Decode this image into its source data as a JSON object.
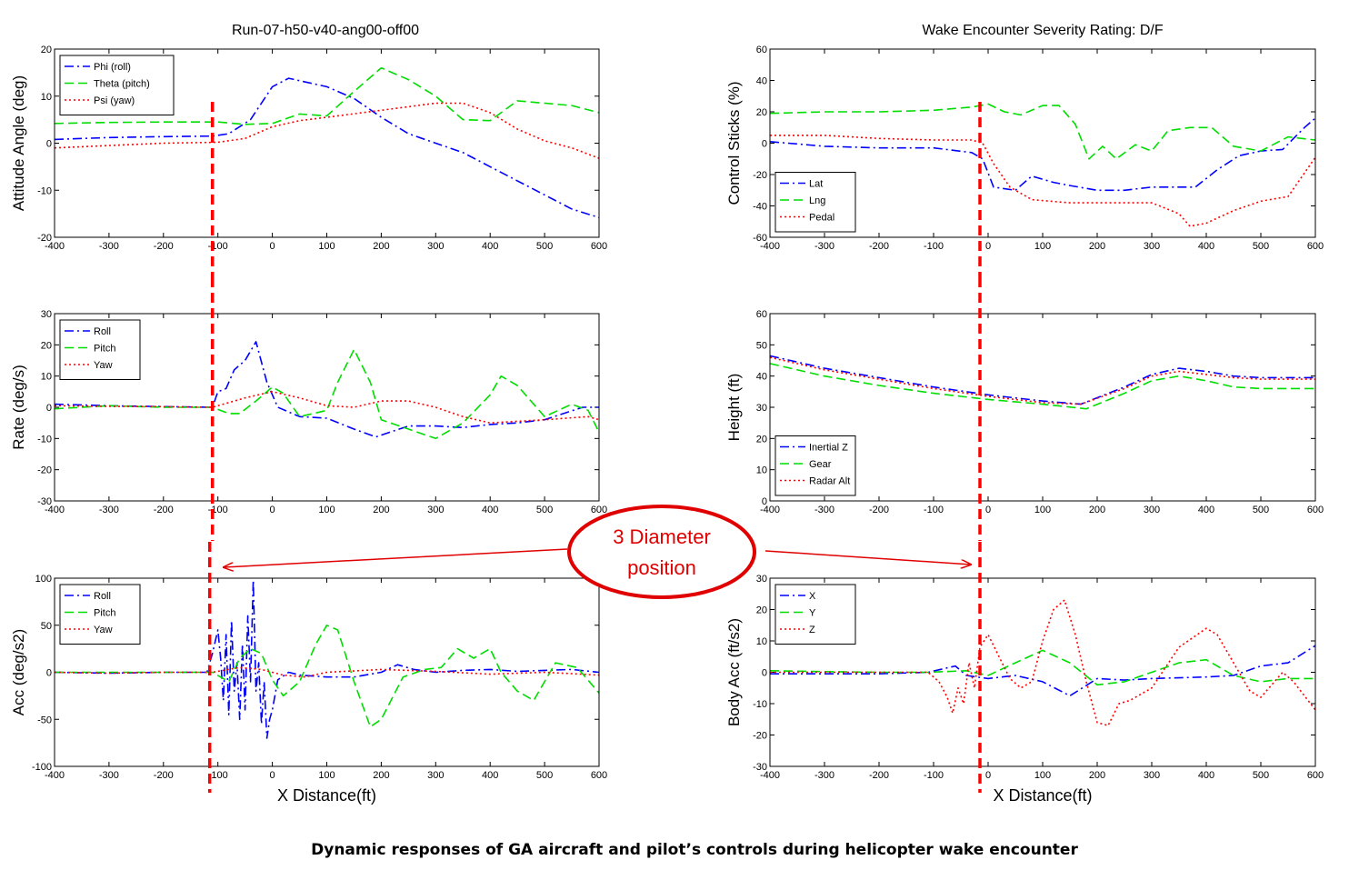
{
  "titles": {
    "left": "Run-07-h50-v40-ang00-off00",
    "right": "Wake Encounter Severity Rating:  D/F"
  },
  "caption": "Dynamic responses of GA aircraft and pilot’s controls during helicopter wake encounter",
  "annotation": {
    "line1": "3 Diameter",
    "line2": "position"
  },
  "colors": {
    "blue": "#0000ff",
    "green": "#00dd00",
    "red": "#ff0000",
    "annotation": "#e00000"
  },
  "chart_data": [
    {
      "type": "line",
      "ylabel": "Attitude Angle (deg)",
      "xlabel": "",
      "xlim": [
        -400,
        600
      ],
      "ylim": [
        -20,
        20
      ],
      "xticks": [
        -400,
        -300,
        -200,
        -100,
        0,
        100,
        200,
        300,
        400,
        500,
        600
      ],
      "yticks": [
        -20,
        -10,
        0,
        10,
        20
      ],
      "marker_x": -110,
      "series": [
        {
          "name": "Phi (roll)",
          "style": "dashdot",
          "color": "#0000ff",
          "x": [
            -400,
            -300,
            -200,
            -110,
            -80,
            -40,
            0,
            30,
            100,
            150,
            200,
            250,
            300,
            350,
            400,
            450,
            500,
            550,
            600
          ],
          "y": [
            0.8,
            1.2,
            1.4,
            1.5,
            2,
            5,
            12,
            13.8,
            12,
            9.5,
            5.5,
            2,
            0,
            -2,
            -5,
            -8,
            -11,
            -14,
            -15.8
          ]
        },
        {
          "name": "Theta (pitch)",
          "style": "dash",
          "color": "#00dd00",
          "x": [
            -400,
            -300,
            -200,
            -100,
            -50,
            0,
            50,
            100,
            150,
            200,
            250,
            300,
            350,
            400,
            450,
            500,
            550,
            600
          ],
          "y": [
            4.2,
            4.4,
            4.5,
            4.5,
            4,
            4.2,
            6.2,
            5.8,
            11,
            16,
            13.5,
            10,
            5,
            4.8,
            9,
            8.5,
            8,
            6.5
          ]
        },
        {
          "name": "Psi (yaw)",
          "style": "dot",
          "color": "#ff0000",
          "x": [
            -400,
            -300,
            -200,
            -100,
            -50,
            0,
            50,
            100,
            200,
            300,
            350,
            400,
            450,
            500,
            550,
            600
          ],
          "y": [
            -1,
            -0.5,
            0,
            0.2,
            1,
            3.5,
            4.8,
            5.5,
            7,
            8.5,
            8.5,
            6.5,
            3,
            0.5,
            -1,
            -3.2
          ]
        }
      ]
    },
    {
      "type": "line",
      "ylabel": "Control Sticks (%)",
      "xlabel": "",
      "xlim": [
        -400,
        600
      ],
      "ylim": [
        -60,
        60
      ],
      "xticks": [
        -400,
        -300,
        -200,
        -100,
        0,
        100,
        200,
        300,
        400,
        500,
        600
      ],
      "yticks": [
        -60,
        -40,
        -20,
        0,
        20,
        40,
        60
      ],
      "marker_x": -15,
      "series": [
        {
          "name": "Lat",
          "style": "dashdot",
          "color": "#0000ff",
          "x": [
            -400,
            -300,
            -200,
            -100,
            -30,
            -10,
            10,
            50,
            80,
            120,
            150,
            200,
            250,
            300,
            350,
            380,
            420,
            460,
            500,
            540,
            580,
            600
          ],
          "y": [
            1,
            -2,
            -3,
            -3,
            -6,
            -10,
            -28,
            -30,
            -21,
            -25,
            -27,
            -30,
            -30,
            -28,
            -28,
            -28,
            -17,
            -8,
            -5,
            -4,
            10,
            16
          ]
        },
        {
          "name": "Lng",
          "style": "dash",
          "color": "#00dd00",
          "x": [
            -400,
            -300,
            -200,
            -100,
            -30,
            0,
            30,
            60,
            100,
            130,
            160,
            185,
            210,
            235,
            270,
            300,
            330,
            370,
            410,
            450,
            500,
            550,
            600
          ],
          "y": [
            19,
            20,
            20,
            21,
            23,
            25,
            20,
            18,
            24,
            24,
            12,
            -10,
            -2,
            -10,
            -1,
            -5,
            8,
            10,
            10,
            -2,
            -5,
            4,
            2
          ]
        },
        {
          "name": "Pedal",
          "style": "dot",
          "color": "#ff0000",
          "x": [
            -400,
            -300,
            -200,
            -100,
            -30,
            -10,
            10,
            40,
            80,
            150,
            200,
            300,
            350,
            370,
            400,
            450,
            500,
            550,
            600
          ],
          "y": [
            5,
            5,
            3,
            2,
            2,
            0,
            -13,
            -28,
            -36,
            -38,
            -38,
            -38,
            -45,
            -53,
            -51,
            -43,
            -37,
            -34,
            -9
          ]
        }
      ]
    },
    {
      "type": "line",
      "ylabel": "Rate (deg/s)",
      "xlabel": "",
      "xlim": [
        -400,
        600
      ],
      "ylim": [
        -30,
        30
      ],
      "xticks": [
        -400,
        -300,
        -200,
        -100,
        0,
        100,
        200,
        300,
        400,
        500,
        600
      ],
      "yticks": [
        -30,
        -20,
        -10,
        0,
        10,
        20,
        30
      ],
      "marker_x": -110,
      "series": [
        {
          "name": "Roll",
          "style": "dashdot",
          "color": "#0000ff",
          "x": [
            -400,
            -300,
            -200,
            -110,
            -100,
            -85,
            -70,
            -50,
            -30,
            -10,
            10,
            50,
            100,
            150,
            190,
            250,
            300,
            350,
            400,
            450,
            500,
            570,
            600
          ],
          "y": [
            1,
            0.5,
            0.2,
            0,
            5,
            6,
            12,
            15,
            21,
            8,
            0,
            -3,
            -3.5,
            -7,
            -9.5,
            -6,
            -6,
            -6.5,
            -5.5,
            -5,
            -4,
            0,
            0
          ]
        },
        {
          "name": "Pitch",
          "style": "dash",
          "color": "#00dd00",
          "x": [
            -400,
            -300,
            -200,
            -110,
            -80,
            -60,
            -30,
            0,
            20,
            50,
            100,
            120,
            150,
            180,
            200,
            250,
            300,
            350,
            400,
            420,
            450,
            500,
            550,
            580,
            600
          ],
          "y": [
            -0.5,
            0.5,
            0,
            0,
            -2,
            -2,
            2,
            6.5,
            4.5,
            -3,
            -1,
            8,
            18.5,
            8,
            -4,
            -7,
            -10,
            -5,
            4,
            10,
            7,
            -3,
            1,
            -1,
            -8
          ]
        },
        {
          "name": "Yaw",
          "style": "dot",
          "color": "#ff0000",
          "x": [
            -400,
            -300,
            -200,
            -110,
            -50,
            0,
            50,
            100,
            150,
            200,
            250,
            300,
            350,
            400,
            500,
            580,
            600
          ],
          "y": [
            0.5,
            0.3,
            0.2,
            0,
            3,
            5,
            3,
            0.5,
            0,
            2,
            2,
            0,
            -3,
            -5,
            -4,
            -3,
            -4
          ]
        }
      ]
    },
    {
      "type": "line",
      "ylabel": "Height (ft)",
      "xlabel": "",
      "xlim": [
        -400,
        600
      ],
      "ylim": [
        0,
        60
      ],
      "xticks": [
        -400,
        -300,
        -200,
        -100,
        0,
        100,
        200,
        300,
        400,
        500,
        600
      ],
      "yticks": [
        0,
        10,
        20,
        30,
        40,
        50,
        60
      ],
      "marker_x": -15,
      "series": [
        {
          "name": "Inertial Z",
          "style": "dashdot",
          "color": "#0000ff",
          "x": [
            -400,
            -300,
            -200,
            -100,
            0,
            100,
            170,
            250,
            300,
            350,
            400,
            450,
            500,
            600
          ],
          "y": [
            46.5,
            42.5,
            39.5,
            36.5,
            34,
            32,
            31,
            36.5,
            40.5,
            42.5,
            41.5,
            40,
            39.5,
            39.5
          ]
        },
        {
          "name": "Gear",
          "style": "dash",
          "color": "#00dd00",
          "x": [
            -400,
            -300,
            -200,
            -100,
            0,
            100,
            180,
            250,
            300,
            350,
            400,
            450,
            500,
            600
          ],
          "y": [
            44,
            40,
            37,
            34.5,
            32.5,
            31,
            29.5,
            34.5,
            38.5,
            40,
            38.5,
            36.5,
            36,
            36
          ]
        },
        {
          "name": "Radar Alt",
          "style": "dot",
          "color": "#ff0000",
          "x": [
            -400,
            -300,
            -200,
            -100,
            0,
            100,
            170,
            250,
            300,
            350,
            400,
            450,
            500,
            600
          ],
          "y": [
            46,
            42,
            39,
            36,
            33.5,
            31.5,
            31,
            36,
            40,
            41.5,
            40.5,
            39.5,
            39,
            39
          ]
        }
      ]
    },
    {
      "type": "line",
      "ylabel": "Acc (deg/s2)",
      "xlabel": "X Distance(ft)",
      "xlim": [
        -400,
        600
      ],
      "ylim": [
        -100,
        100
      ],
      "xticks": [
        -400,
        -300,
        -200,
        -100,
        0,
        100,
        200,
        300,
        400,
        500,
        600
      ],
      "yticks": [
        -100,
        -50,
        0,
        50,
        100
      ],
      "marker_x": -115,
      "series": [
        {
          "name": "Roll",
          "style": "dashdot",
          "color": "#0000ff",
          "x": [
            -400,
            -300,
            -200,
            -120,
            -110,
            -100,
            -95,
            -90,
            -85,
            -80,
            -75,
            -70,
            -65,
            -60,
            -55,
            -50,
            -45,
            -40,
            -35,
            -30,
            -25,
            -20,
            -15,
            -10,
            -5,
            0,
            10,
            30,
            50,
            100,
            150,
            200,
            230,
            260,
            300,
            350,
            400,
            450,
            500,
            550,
            600
          ],
          "y": [
            0,
            -1,
            0,
            0,
            20,
            45,
            15,
            -30,
            40,
            -45,
            55,
            -20,
            10,
            -50,
            30,
            -40,
            60,
            -10,
            98,
            -20,
            10,
            -55,
            -10,
            -70,
            -50,
            -40,
            -8,
            0,
            -3,
            -5,
            -5,
            0,
            8,
            3,
            0,
            2,
            3,
            1,
            2,
            3,
            0
          ]
        },
        {
          "name": "Pitch",
          "style": "dash",
          "color": "#00dd00",
          "x": [
            -400,
            -300,
            -200,
            -110,
            -80,
            -60,
            -40,
            -20,
            0,
            20,
            50,
            80,
            100,
            120,
            150,
            180,
            200,
            240,
            280,
            310,
            340,
            370,
            400,
            420,
            450,
            480,
            520,
            560,
            600
          ],
          "y": [
            0,
            0,
            0,
            0,
            -10,
            15,
            25,
            20,
            -8,
            -25,
            -10,
            30,
            50,
            45,
            -10,
            -58,
            -50,
            -5,
            3,
            5,
            25,
            15,
            25,
            0,
            -20,
            -30,
            10,
            5,
            -22
          ]
        },
        {
          "name": "Yaw",
          "style": "dot",
          "color": "#ff0000",
          "x": [
            -400,
            -300,
            -200,
            -110,
            -60,
            -20,
            20,
            60,
            100,
            200,
            300,
            400,
            500,
            600
          ],
          "y": [
            0,
            -1,
            0,
            0,
            5,
            3,
            -3,
            -5,
            0,
            3,
            1,
            -2,
            0,
            -3
          ]
        }
      ]
    },
    {
      "type": "line",
      "ylabel": "Body Acc (ft/s2)",
      "xlabel": "X Distance(ft)",
      "xlim": [
        -400,
        600
      ],
      "ylim": [
        -30,
        30
      ],
      "xticks": [
        -400,
        -300,
        -200,
        -100,
        0,
        100,
        200,
        300,
        400,
        500,
        600
      ],
      "yticks": [
        -30,
        -20,
        -10,
        0,
        10,
        20,
        30
      ],
      "marker_x": -15,
      "series": [
        {
          "name": "X",
          "style": "dashdot",
          "color": "#0000ff",
          "x": [
            -400,
            -300,
            -200,
            -110,
            -60,
            -40,
            0,
            50,
            100,
            150,
            200,
            250,
            300,
            400,
            450,
            500,
            550,
            600
          ],
          "y": [
            -0.5,
            -0.5,
            -0.5,
            0,
            2,
            -1,
            -2,
            -1,
            -3,
            -7.5,
            -2,
            -2.5,
            -2,
            -1.5,
            -1,
            2,
            3,
            8.5
          ]
        },
        {
          "name": "Y",
          "style": "dash",
          "color": "#00dd00",
          "x": [
            -400,
            -300,
            -200,
            -110,
            -40,
            0,
            50,
            100,
            150,
            200,
            250,
            300,
            350,
            400,
            450,
            500,
            550,
            600
          ],
          "y": [
            0.5,
            0.2,
            0,
            0,
            0.5,
            -1,
            3,
            7,
            3,
            -4,
            -3,
            0,
            3,
            4,
            -1,
            -3,
            -2,
            -2
          ]
        },
        {
          "name": "Z",
          "style": "dot",
          "color": "#ff0000",
          "x": [
            -400,
            -300,
            -200,
            -110,
            -90,
            -75,
            -65,
            -55,
            -45,
            -35,
            -25,
            -15,
            0,
            20,
            40,
            60,
            80,
            100,
            120,
            140,
            160,
            180,
            200,
            220,
            240,
            260,
            300,
            350,
            400,
            420,
            450,
            480,
            500,
            540,
            560,
            600
          ],
          "y": [
            0,
            0,
            0,
            0,
            -3,
            -8,
            -13,
            -5,
            -10,
            3,
            -5,
            8,
            12,
            5,
            -2,
            -5,
            -3,
            10,
            20,
            23,
            12,
            -3,
            -16,
            -17,
            -10,
            -9,
            -5,
            8,
            14,
            12,
            3,
            -6,
            -8,
            0,
            -3,
            -12
          ]
        }
      ]
    }
  ]
}
